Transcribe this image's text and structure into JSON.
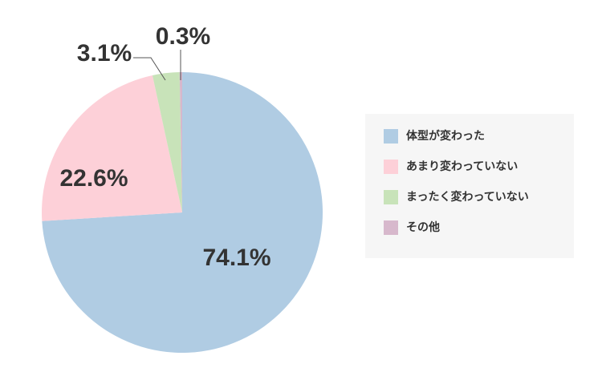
{
  "chart_data": {
    "type": "pie",
    "categories": [
      "体型が変わった",
      "あまり変わっていない",
      "まったく変わっていない",
      "その他"
    ],
    "values": [
      74.1,
      22.6,
      3.1,
      0.3
    ],
    "value_labels": [
      "74.1%",
      "22.6%",
      "3.1%",
      "0.3%"
    ],
    "colors": [
      "#b0cce3",
      "#fdd0d8",
      "#c8e3b9",
      "#d7b8cc"
    ],
    "legend": "right"
  }
}
